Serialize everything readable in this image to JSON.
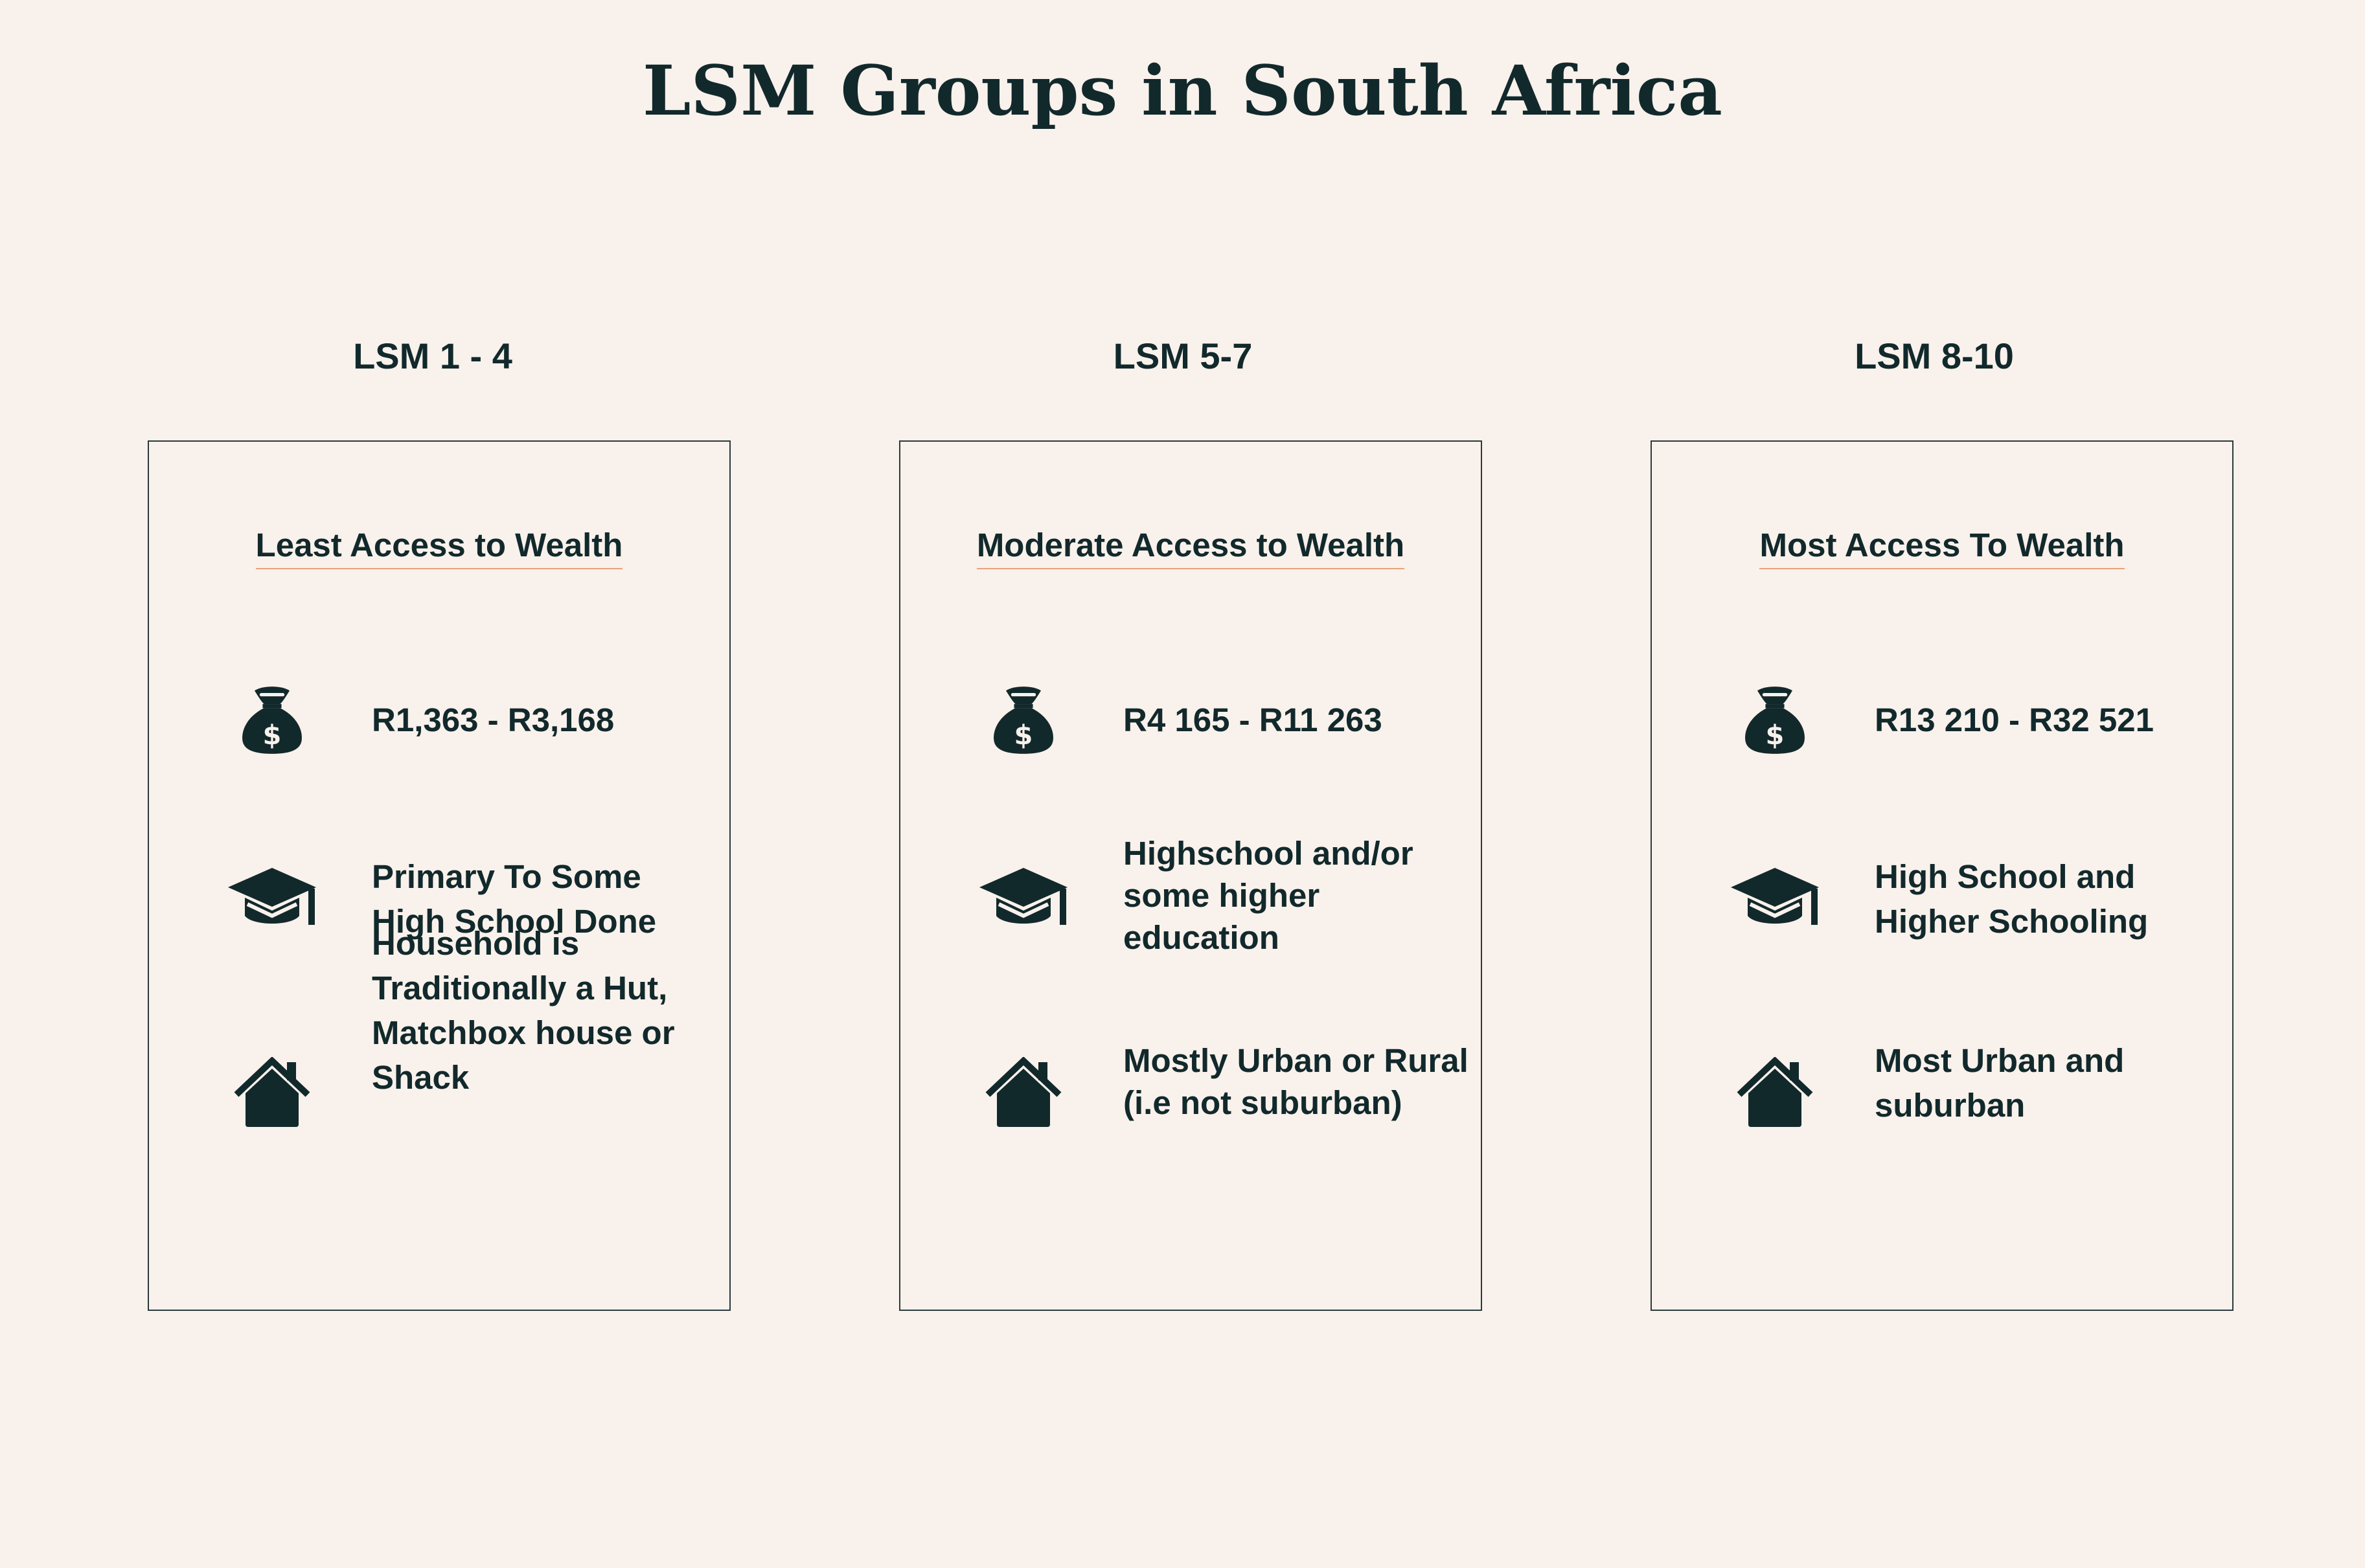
{
  "title": "LSM Groups in South Africa",
  "colors": {
    "background": "#f9f1eb",
    "text": "#12292c",
    "heading_underline": "#e8a27c",
    "card_border": "#2b3a3c"
  },
  "groups": [
    {
      "label": "LSM 1 - 4",
      "heading": "Least Access to Wealth",
      "income": {
        "icon": "money-bag-icon",
        "text": "R1,363 - R3,168"
      },
      "education": {
        "icon": "graduation-cap-icon",
        "text": "Primary To Some\nHigh School Done"
      },
      "housing": {
        "icon": "house-icon",
        "text": "Household is\nTraditionally a Hut,\nMatchbox house or\nShack"
      }
    },
    {
      "label": "LSM 5-7",
      "heading": "Moderate Access to Wealth",
      "income": {
        "icon": "money-bag-icon",
        "text": "R4 165  - R11 263"
      },
      "education": {
        "icon": "graduation-cap-icon",
        "text": "Highschool and/or\nsome higher\neducation"
      },
      "housing": {
        "icon": "house-icon",
        "text": "Mostly Urban or Rural\n(i.e not suburban)"
      }
    },
    {
      "label": "LSM 8-10",
      "heading": "Most Access To Wealth",
      "income": {
        "icon": "money-bag-icon",
        "text": "R13 210 - R32 521"
      },
      "education": {
        "icon": "graduation-cap-icon",
        "text": "High School and\nHigher Schooling"
      },
      "housing": {
        "icon": "house-icon",
        "text": "Most Urban and\nsuburban"
      }
    }
  ]
}
